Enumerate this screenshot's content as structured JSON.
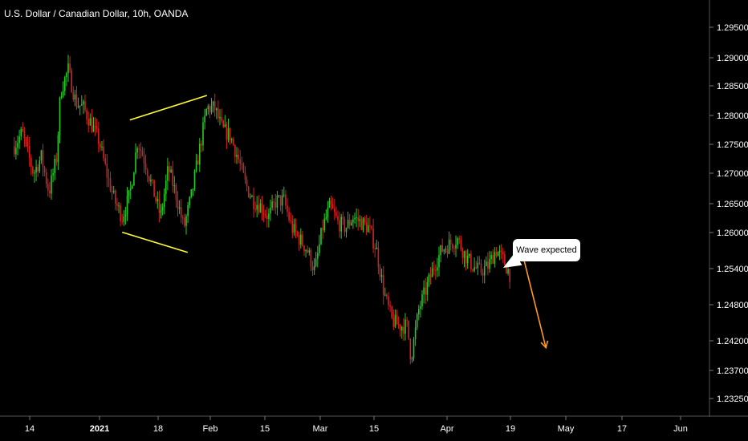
{
  "chart_data": {
    "type": "candlestick",
    "title": "U.S. Dollar / Canadian Dollar, 10h, OANDA",
    "x_ticks": [
      "14",
      "2021",
      "18",
      "Feb",
      "15",
      "Mar",
      "15",
      "Apr",
      "19",
      "May",
      "17",
      "Jun"
    ],
    "y_ticks": [
      "1.29500",
      "1.29000",
      "1.28500",
      "1.28000",
      "1.27500",
      "1.27000",
      "1.26500",
      "1.26000",
      "1.25400",
      "1.24800",
      "1.24200",
      "1.23700",
      "1.23250"
    ],
    "ylim": [
      1.23,
      1.2985
    ],
    "grid": false,
    "colors": {
      "up": "#26c926",
      "down": "#d62020",
      "background": "#000000",
      "axis_text": "#ffffff",
      "pattern_lines": "#ffff33",
      "projection_arrow": "#ff9a1f"
    },
    "price_path": [
      [
        "2020-12-10",
        1.279
      ],
      [
        "2020-12-12",
        1.2815
      ],
      [
        "2020-12-15",
        1.274
      ],
      [
        "2020-12-17",
        1.277
      ],
      [
        "2020-12-19",
        1.2705
      ],
      [
        "2020-12-21",
        1.277
      ],
      [
        "2020-12-22",
        1.289
      ],
      [
        "2020-12-24",
        1.293
      ],
      [
        "2020-12-26",
        1.287
      ],
      [
        "2020-12-28",
        1.286
      ],
      [
        "2020-12-30",
        1.283
      ],
      [
        "2021-01-01",
        1.28
      ],
      [
        "2021-01-03",
        1.274
      ],
      [
        "2021-01-05",
        1.269
      ],
      [
        "2021-01-07",
        1.266
      ],
      [
        "2021-01-09",
        1.27
      ],
      [
        "2021-01-11",
        1.28
      ],
      [
        "2021-01-13",
        1.276
      ],
      [
        "2021-01-15",
        1.271
      ],
      [
        "2021-01-17",
        1.266
      ],
      [
        "2021-01-19",
        1.275
      ],
      [
        "2021-01-21",
        1.27
      ],
      [
        "2021-01-23",
        1.264
      ],
      [
        "2021-01-25",
        1.27
      ],
      [
        "2021-01-27",
        1.278
      ],
      [
        "2021-01-29",
        1.286
      ],
      [
        "2021-01-31",
        1.286
      ],
      [
        "2021-02-02",
        1.282
      ],
      [
        "2021-02-04",
        1.281
      ],
      [
        "2021-02-06",
        1.277
      ],
      [
        "2021-02-08",
        1.272
      ],
      [
        "2021-02-10",
        1.269
      ],
      [
        "2021-02-12",
        1.268
      ],
      [
        "2021-02-14",
        1.266
      ],
      [
        "2021-02-16",
        1.269
      ],
      [
        "2021-02-18",
        1.269
      ],
      [
        "2021-02-20",
        1.264
      ],
      [
        "2021-02-22",
        1.262
      ],
      [
        "2021-02-24",
        1.26
      ],
      [
        "2021-02-26",
        1.256
      ],
      [
        "2021-02-28",
        1.264
      ],
      [
        "2021-03-02",
        1.268
      ],
      [
        "2021-03-04",
        1.265
      ],
      [
        "2021-03-06",
        1.264
      ],
      [
        "2021-03-08",
        1.266
      ],
      [
        "2021-03-10",
        1.265
      ],
      [
        "2021-03-12",
        1.264
      ],
      [
        "2021-03-14",
        1.26
      ],
      [
        "2021-03-16",
        1.252
      ],
      [
        "2021-03-18",
        1.247
      ],
      [
        "2021-03-20",
        1.246
      ],
      [
        "2021-03-22",
        1.246
      ],
      [
        "2021-03-23",
        1.24
      ],
      [
        "2021-03-25",
        1.249
      ],
      [
        "2021-03-27",
        1.253
      ],
      [
        "2021-03-29",
        1.257
      ],
      [
        "2021-03-31",
        1.26
      ],
      [
        "2021-04-02",
        1.261
      ],
      [
        "2021-04-04",
        1.262
      ],
      [
        "2021-04-06",
        1.259
      ],
      [
        "2021-04-08",
        1.257
      ],
      [
        "2021-04-10",
        1.256
      ],
      [
        "2021-04-12",
        1.257
      ],
      [
        "2021-04-14",
        1.26
      ],
      [
        "2021-04-16",
        1.258
      ],
      [
        "2021-04-18",
        1.255
      ]
    ],
    "annotations": [
      {
        "type": "line",
        "from": [
          "2021-01-09",
          1.2838
        ],
        "to": [
          "2021-01-29",
          1.2883
        ]
      },
      {
        "type": "line",
        "from": [
          "2021-01-07",
          1.2632
        ],
        "to": [
          "2021-01-24",
          1.2595
        ]
      },
      {
        "type": "arrow",
        "from": [
          "2021-04-21",
          1.259
        ],
        "to": [
          "2021-04-27",
          1.242
        ]
      },
      {
        "type": "callout",
        "text": "Wave expected"
      }
    ]
  }
}
